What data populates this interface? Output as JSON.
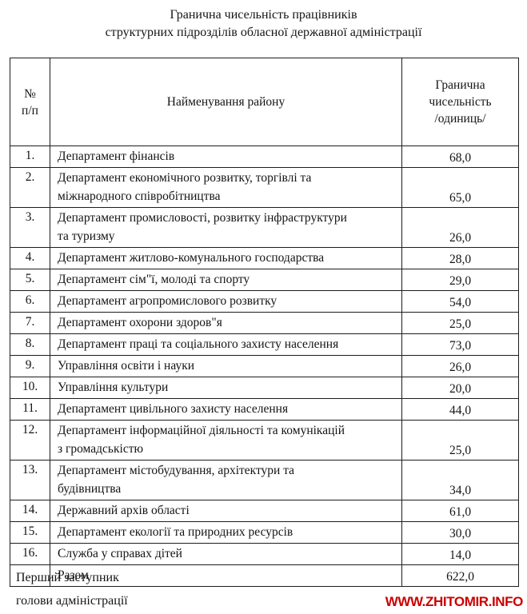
{
  "title": {
    "line1": "Гранична чисельність працівників",
    "line2": "структурних підрозділів обласної державної адміністрації"
  },
  "table": {
    "headers": {
      "num": "№\nп/п",
      "name": "Найменування району",
      "limit": "Гранична\nчисельність\n/одиниць/"
    },
    "rows": [
      {
        "num": "1.",
        "name": "Департамент фінансів",
        "value": "68,0"
      },
      {
        "num": "2.",
        "name": "Департамент економічного розвитку, торгівлі та\nміжнародного співробітництва",
        "value": "65,0"
      },
      {
        "num": "3.",
        "name": "Департамент промисловості, розвитку інфраструктури\nта туризму",
        "value": "26,0"
      },
      {
        "num": "4.",
        "name": "Департамент житлово-комунального господарства",
        "value": "28,0"
      },
      {
        "num": "5.",
        "name": "Департамент сім\"ї, молоді та спорту",
        "value": "29,0"
      },
      {
        "num": "6.",
        "name": "Департамент агропромислового розвитку",
        "value": "54,0"
      },
      {
        "num": "7.",
        "name": "Департамент охорони здоров\"я",
        "value": "25,0"
      },
      {
        "num": "8.",
        "name": "Департамент праці та соціального захисту населення",
        "value": "73,0"
      },
      {
        "num": "9.",
        "name": "Управління освіти і науки",
        "value": "26,0"
      },
      {
        "num": "10.",
        "name": "Управління культури",
        "value": "20,0"
      },
      {
        "num": "11.",
        "name": "Департамент цивільного захисту населення",
        "value": "44,0"
      },
      {
        "num": "12.",
        "name": "Департамент інформаційної діяльності та комунікацій\nз громадськістю",
        "value": "25,0"
      },
      {
        "num": "13.",
        "name": "Департамент містобудування, архітектури та\nбудівництва",
        "value": "34,0"
      },
      {
        "num": "14.",
        "name": "Державний архів області",
        "value": "61,0"
      },
      {
        "num": "15.",
        "name": "Департамент екології та природних ресурсів",
        "value": "30,0"
      },
      {
        "num": "16.",
        "name": "Служба у справах дітей",
        "value": "14,0"
      }
    ],
    "total": {
      "num": "",
      "name": "Разом",
      "value": "622,0"
    }
  },
  "footer": {
    "sign_line1": "Перший заступник",
    "sign_line2": "голови адміністрації",
    "watermark": "WWW.ZHITOMIR.INFO",
    "watermark_color": "#cc0000"
  }
}
